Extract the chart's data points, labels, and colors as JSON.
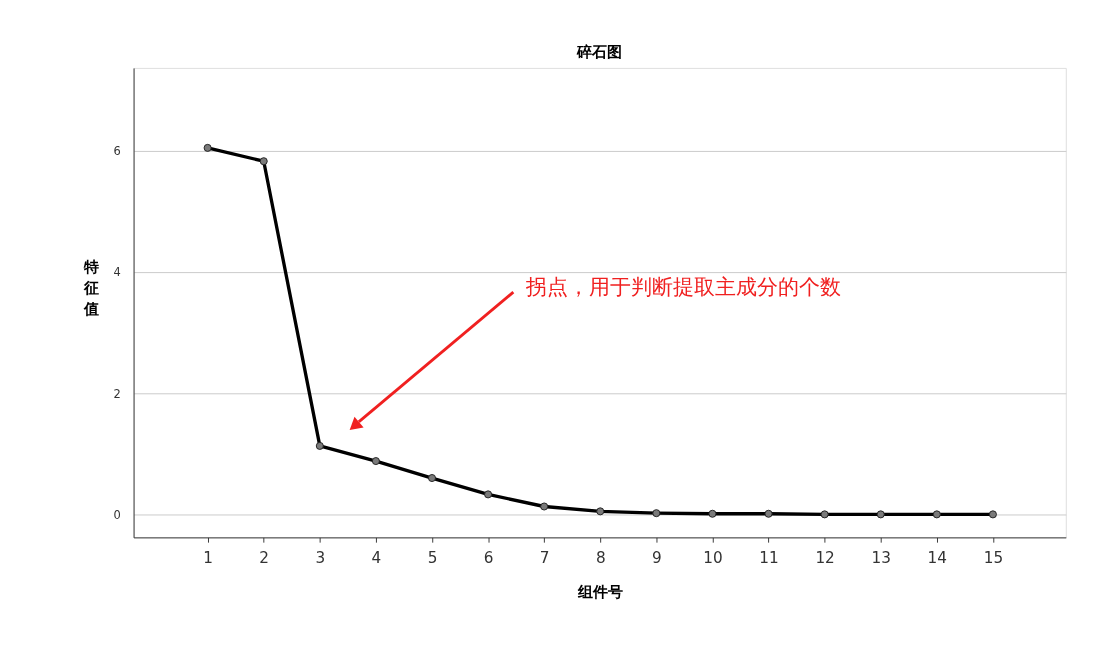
{
  "chart_data": {
    "type": "line",
    "title": "碎石图",
    "xlabel": "组件号",
    "ylabel": "特征值",
    "x": [
      1,
      2,
      3,
      4,
      5,
      6,
      7,
      8,
      9,
      10,
      11,
      12,
      13,
      14,
      15
    ],
    "series": [
      {
        "color": "#000000",
        "values": [
          6.05,
          5.83,
          1.13,
          0.88,
          0.6,
          0.33,
          0.13,
          0.05,
          0.02,
          0.01,
          0.01,
          0.0,
          0.0,
          0.0,
          0.0
        ]
      }
    ],
    "xlim": [
      -0.32,
      16.3
    ],
    "xticks": [
      1,
      2,
      3,
      4,
      5,
      6,
      7,
      8,
      9,
      10,
      11,
      12,
      13,
      14,
      15
    ],
    "ylim": [
      -0.38,
      7.37
    ],
    "yticks": [
      0,
      2,
      4,
      6
    ],
    "grid": "y",
    "marker": "circle",
    "line_style": "solid",
    "annotations": [
      "拐点，用于判断提取主成分的个数"
    ]
  }
}
